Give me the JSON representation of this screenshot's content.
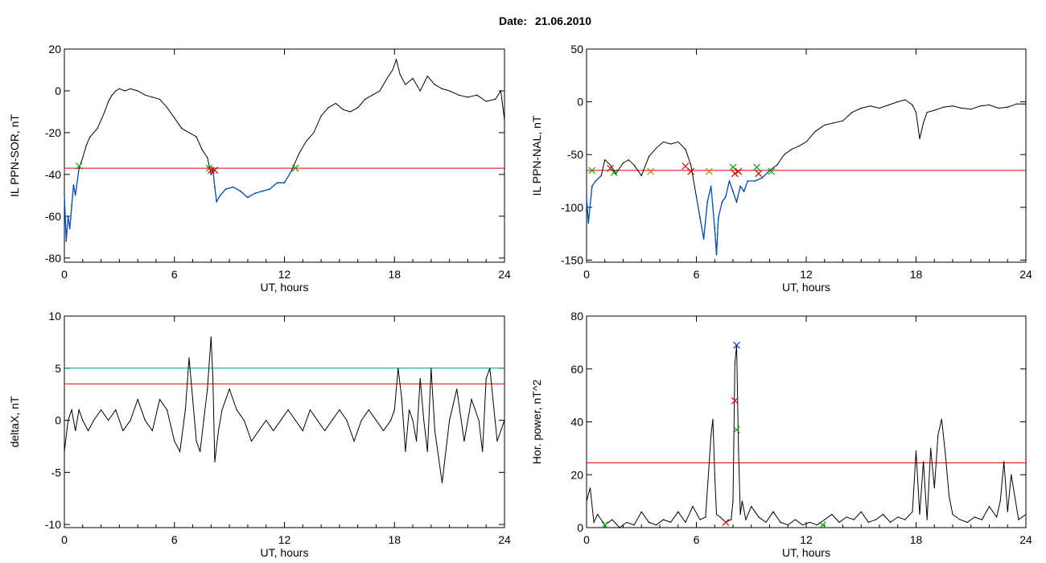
{
  "header": {
    "date_label": "Date:",
    "date_value": "21.06.2010"
  },
  "colors": {
    "trace": "#000000",
    "below": "#0055cc",
    "threshold": "#dd0000",
    "threshold2": "#009999",
    "marker_green": "#00aa00",
    "marker_red": "#dd0000",
    "marker_blue": "#0044cc"
  },
  "chart_data": [
    {
      "type": "line",
      "title": "",
      "xlabel": "UT, hours",
      "ylabel": "IL PPN-SOR, nT",
      "xlim": [
        0,
        24
      ],
      "ylim": [
        -82,
        20
      ],
      "xticks": [
        0,
        6,
        12,
        18,
        24
      ],
      "yticks": [
        -80,
        -60,
        -40,
        -20,
        0,
        20
      ],
      "threshold": -37,
      "grid": false,
      "series": [
        {
          "x": [
            0,
            0.1,
            0.2,
            0.3,
            0.4,
            0.5,
            0.6,
            0.8,
            1.0,
            1.2,
            1.4,
            1.6,
            1.8,
            2.0,
            2.2,
            2.4,
            2.6,
            2.8,
            3.0,
            3.3,
            3.6,
            4.0,
            4.4,
            4.8,
            5.2,
            5.6,
            6.0,
            6.4,
            6.8,
            7.2,
            7.5,
            7.8,
            7.9,
            8.0,
            8.1,
            8.2,
            8.3,
            8.5,
            8.8,
            9.2,
            9.6,
            10.0,
            10.4,
            10.8,
            11.2,
            11.6,
            12.0,
            12.4,
            12.8,
            13.2,
            13.6,
            14.0,
            14.4,
            14.8,
            15.2,
            15.6,
            16.0,
            16.4,
            16.8,
            17.2,
            17.6,
            17.9,
            18.1,
            18.3,
            18.6,
            19.0,
            19.4,
            19.8,
            20.2,
            20.6,
            21.0,
            21.5,
            22.0,
            22.5,
            23.0,
            23.5,
            23.8,
            24.0
          ],
          "y": [
            -50,
            -72,
            -60,
            -66,
            -55,
            -45,
            -50,
            -37,
            -32,
            -26,
            -22,
            -20,
            -18,
            -14,
            -10,
            -5,
            -2,
            0,
            1,
            0,
            1,
            0,
            -2,
            -3,
            -4,
            -8,
            -13,
            -18,
            -20,
            -22,
            -28,
            -32,
            -36,
            -40,
            -38,
            -46,
            -53,
            -50,
            -47,
            -46,
            -48,
            -51,
            -49,
            -48,
            -47,
            -44,
            -44,
            -38,
            -30,
            -24,
            -20,
            -12,
            -8,
            -6,
            -9,
            -10,
            -8,
            -4,
            -2,
            0,
            6,
            10,
            15,
            8,
            3,
            6,
            0,
            7,
            3,
            1,
            0,
            -2,
            -3,
            -2,
            -5,
            -4,
            0,
            -14
          ]
        }
      ],
      "markers": [
        {
          "x": 0.8,
          "y": -36,
          "color": "green"
        },
        {
          "x": 7.9,
          "y": -37,
          "color": "green"
        },
        {
          "x": 8.0,
          "y": -38,
          "color": "red"
        },
        {
          "x": 8.2,
          "y": -38,
          "color": "red"
        },
        {
          "x": 12.6,
          "y": -37,
          "color": "green"
        }
      ]
    },
    {
      "type": "line",
      "title": "",
      "xlabel": "UT, hours",
      "ylabel": "IL PPN-NAL, nT",
      "xlim": [
        0,
        24
      ],
      "ylim": [
        -152,
        50
      ],
      "xticks": [
        0,
        6,
        12,
        18,
        24
      ],
      "yticks": [
        -150,
        -100,
        -50,
        0,
        50
      ],
      "threshold": -65,
      "grid": false,
      "series": [
        {
          "x": [
            0,
            0.1,
            0.3,
            0.5,
            0.8,
            1.0,
            1.3,
            1.6,
            2.0,
            2.3,
            2.6,
            3.0,
            3.4,
            3.8,
            4.2,
            4.6,
            5.0,
            5.4,
            5.7,
            6.0,
            6.2,
            6.4,
            6.6,
            6.8,
            7.0,
            7.1,
            7.2,
            7.4,
            7.6,
            7.8,
            8.0,
            8.2,
            8.4,
            8.6,
            8.8,
            9.2,
            9.6,
            10.0,
            10.4,
            10.8,
            11.2,
            11.6,
            12.0,
            12.5,
            13.0,
            13.5,
            14.0,
            14.5,
            15.0,
            15.5,
            16.0,
            16.5,
            17.0,
            17.4,
            17.8,
            18.0,
            18.2,
            18.4,
            18.6,
            19.0,
            19.5,
            20.0,
            20.5,
            21.0,
            21.5,
            22.0,
            22.5,
            23.0,
            23.5,
            24.0
          ],
          "y": [
            -90,
            -115,
            -80,
            -75,
            -70,
            -55,
            -60,
            -68,
            -58,
            -55,
            -60,
            -70,
            -52,
            -44,
            -38,
            -40,
            -38,
            -45,
            -60,
            -90,
            -110,
            -130,
            -95,
            -80,
            -120,
            -145,
            -110,
            -95,
            -90,
            -75,
            -85,
            -95,
            -80,
            -85,
            -75,
            -75,
            -72,
            -65,
            -60,
            -50,
            -45,
            -42,
            -38,
            -28,
            -22,
            -20,
            -18,
            -10,
            -6,
            -4,
            -6,
            -3,
            0,
            2,
            -3,
            -10,
            -35,
            -20,
            -10,
            -8,
            -5,
            -4,
            -6,
            -7,
            -4,
            -3,
            -6,
            -5,
            -2,
            -2
          ]
        }
      ],
      "markers": [
        {
          "x": 0.3,
          "y": -65,
          "color": "green"
        },
        {
          "x": 1.3,
          "y": -63,
          "color": "red"
        },
        {
          "x": 1.5,
          "y": -67,
          "color": "green"
        },
        {
          "x": 3.5,
          "y": -66,
          "color": "orange"
        },
        {
          "x": 5.4,
          "y": -61,
          "color": "red"
        },
        {
          "x": 5.7,
          "y": -66,
          "color": "red"
        },
        {
          "x": 6.7,
          "y": -66,
          "color": "orange"
        },
        {
          "x": 8.0,
          "y": -62,
          "color": "green"
        },
        {
          "x": 8.1,
          "y": -68,
          "color": "red"
        },
        {
          "x": 8.3,
          "y": -66,
          "color": "red"
        },
        {
          "x": 9.3,
          "y": -62,
          "color": "green"
        },
        {
          "x": 9.4,
          "y": -68,
          "color": "red"
        },
        {
          "x": 10.1,
          "y": -66,
          "color": "green"
        }
      ]
    },
    {
      "type": "line",
      "title": "",
      "xlabel": "UT, hours",
      "ylabel": "deltaX, nT",
      "xlim": [
        0,
        24
      ],
      "ylim": [
        -10.3,
        10
      ],
      "xticks": [
        0,
        6,
        12,
        18,
        24
      ],
      "yticks": [
        -10,
        -5,
        0,
        5,
        10
      ],
      "thresholds": [
        {
          "value": 5,
          "color": "teal"
        },
        {
          "value": 3.5,
          "color": "red"
        }
      ],
      "grid": false,
      "series": [
        {
          "x": [
            0,
            0.2,
            0.4,
            0.6,
            0.8,
            1.0,
            1.3,
            1.6,
            2.0,
            2.4,
            2.8,
            3.2,
            3.6,
            4.0,
            4.4,
            4.8,
            5.2,
            5.6,
            6.0,
            6.3,
            6.6,
            6.8,
            7.0,
            7.2,
            7.4,
            7.6,
            7.8,
            8.0,
            8.1,
            8.2,
            8.4,
            8.6,
            9.0,
            9.4,
            9.8,
            10.2,
            10.6,
            11.0,
            11.4,
            11.8,
            12.2,
            12.6,
            13.0,
            13.4,
            13.8,
            14.2,
            14.6,
            15.0,
            15.4,
            15.8,
            16.2,
            16.6,
            17.0,
            17.4,
            17.8,
            18.0,
            18.2,
            18.4,
            18.6,
            18.8,
            19.0,
            19.2,
            19.4,
            19.6,
            19.8,
            20.0,
            20.2,
            20.6,
            21.0,
            21.4,
            21.8,
            22.2,
            22.6,
            22.8,
            23.0,
            23.2,
            23.6,
            24.0
          ],
          "y": [
            -3,
            0,
            1,
            -1,
            1,
            0,
            -1,
            0,
            1,
            0,
            1,
            -1,
            0,
            2,
            0,
            -1,
            2,
            1,
            -2,
            -3,
            1,
            6,
            2,
            -2,
            -3,
            0,
            3,
            8,
            4,
            -4,
            -1,
            1,
            3,
            1,
            0,
            -2,
            -1,
            0,
            -1,
            0,
            1,
            0,
            -1,
            1,
            0,
            -1,
            0,
            1,
            0,
            -2,
            0,
            1,
            0,
            -1,
            0,
            1,
            5,
            2,
            -3,
            1,
            0,
            -2,
            4,
            0,
            -3,
            5,
            -1,
            -6,
            0,
            3,
            -2,
            2,
            0,
            -3,
            4,
            5,
            -2,
            0
          ]
        }
      ]
    },
    {
      "type": "line",
      "title": "",
      "xlabel": "UT, hours",
      "ylabel": "Hor. power, nT^2",
      "xlim": [
        0,
        24
      ],
      "ylim": [
        0,
        80
      ],
      "xticks": [
        0,
        6,
        12,
        18,
        24
      ],
      "yticks": [
        0,
        20,
        40,
        60,
        80
      ],
      "threshold": 24.5,
      "grid": false,
      "series": [
        {
          "x": [
            0,
            0.2,
            0.4,
            0.6,
            1.0,
            1.4,
            1.8,
            2.2,
            2.6,
            3.0,
            3.4,
            3.8,
            4.2,
            4.6,
            5.0,
            5.4,
            5.8,
            6.2,
            6.5,
            6.8,
            6.9,
            7.0,
            7.1,
            7.3,
            7.6,
            7.9,
            8.0,
            8.1,
            8.2,
            8.3,
            8.4,
            8.5,
            8.7,
            9.0,
            9.4,
            9.8,
            10.2,
            10.6,
            11.0,
            11.4,
            11.8,
            12.2,
            12.6,
            13.0,
            13.4,
            13.8,
            14.2,
            14.6,
            15.0,
            15.4,
            15.8,
            16.2,
            16.6,
            17.0,
            17.4,
            17.8,
            18.0,
            18.2,
            18.4,
            18.6,
            18.8,
            19.0,
            19.2,
            19.4,
            19.6,
            19.8,
            20.0,
            20.4,
            20.8,
            21.2,
            21.6,
            22.0,
            22.4,
            22.6,
            22.8,
            23.0,
            23.2,
            23.6,
            24.0
          ],
          "y": [
            10,
            15,
            2,
            5,
            1,
            3,
            0,
            2,
            1,
            6,
            2,
            1,
            3,
            2,
            6,
            2,
            8,
            3,
            4,
            35,
            41,
            20,
            5,
            4,
            2,
            3,
            10,
            62,
            69,
            30,
            5,
            10,
            3,
            8,
            4,
            2,
            6,
            2,
            1,
            3,
            1,
            2,
            1,
            3,
            5,
            2,
            4,
            3,
            6,
            2,
            3,
            5,
            2,
            4,
            3,
            6,
            29,
            5,
            25,
            3,
            30,
            15,
            35,
            41,
            28,
            12,
            5,
            3,
            2,
            4,
            3,
            8,
            4,
            10,
            25,
            6,
            20,
            3,
            5
          ]
        }
      ],
      "markers": [
        {
          "x": 8.2,
          "y": 69,
          "color": "blue"
        },
        {
          "x": 8.1,
          "y": 48,
          "color": "red"
        },
        {
          "x": 8.2,
          "y": 37,
          "color": "green"
        },
        {
          "x": 7.6,
          "y": 2,
          "color": "red"
        },
        {
          "x": 1.0,
          "y": 1,
          "color": "green"
        },
        {
          "x": 12.9,
          "y": 1,
          "color": "green"
        }
      ]
    }
  ]
}
